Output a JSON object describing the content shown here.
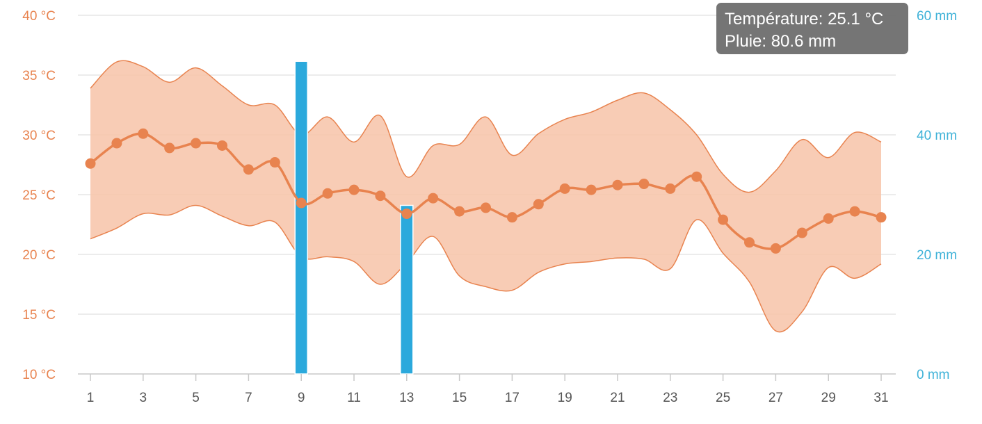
{
  "chart_data": {
    "type": "line",
    "x": [
      1,
      2,
      3,
      4,
      5,
      6,
      7,
      8,
      9,
      10,
      11,
      12,
      13,
      14,
      15,
      16,
      17,
      18,
      19,
      20,
      21,
      22,
      23,
      24,
      25,
      26,
      27,
      28,
      29,
      30,
      31
    ],
    "x_ticks": [
      "1",
      "3",
      "5",
      "7",
      "9",
      "11",
      "13",
      "15",
      "17",
      "19",
      "21",
      "23",
      "25",
      "27",
      "29",
      "31"
    ],
    "y_left": {
      "ticks": [
        "10 °C",
        "15 °C",
        "20 °C",
        "25 °C",
        "30 °C",
        "35 °C",
        "40 °C"
      ],
      "ylim": [
        10,
        40
      ]
    },
    "y_right": {
      "ticks": [
        "0 mm",
        "20 mm",
        "40 mm",
        "60 mm"
      ],
      "ylim": [
        0,
        60
      ]
    },
    "series": [
      {
        "kind": "line",
        "color": "#e8834f",
        "values": [
          27.6,
          29.3,
          30.1,
          28.9,
          29.3,
          29.1,
          27.1,
          27.7,
          24.3,
          25.1,
          25.4,
          24.9,
          23.4,
          24.7,
          23.6,
          23.9,
          23.1,
          24.2,
          25.5,
          25.4,
          25.8,
          25.9,
          25.5,
          26.5,
          22.9,
          21.0,
          20.5,
          21.8,
          23.0,
          23.6,
          23.1
        ]
      },
      {
        "kind": "range",
        "color": "#f7c3a8",
        "high": [
          33.9,
          36.1,
          35.7,
          34.4,
          35.6,
          34.1,
          32.5,
          32.5,
          30.0,
          31.5,
          29.4,
          31.6,
          26.5,
          29.1,
          29.2,
          31.5,
          28.3,
          30.1,
          31.3,
          31.9,
          32.9,
          33.5,
          32.1,
          30.0,
          26.7,
          25.2,
          27.0,
          29.6,
          28.1,
          30.2,
          29.4
        ],
        "low": [
          21.3,
          22.2,
          23.4,
          23.3,
          24.1,
          23.2,
          22.4,
          22.7,
          19.8,
          19.8,
          19.4,
          17.5,
          19.3,
          21.5,
          18.2,
          17.3,
          17.0,
          18.5,
          19.2,
          19.4,
          19.7,
          19.6,
          18.8,
          22.9,
          20.1,
          17.7,
          13.6,
          15.2,
          18.9,
          18.0,
          19.2
        ]
      },
      {
        "kind": "bar",
        "axis": "right",
        "color": "#2ba9dc",
        "bars": [
          {
            "x": 9,
            "value": 52.3
          },
          {
            "x": 13,
            "value": 28.2
          }
        ]
      }
    ],
    "grid": true,
    "legend": "none",
    "tooltip": {
      "line1": "Température: 25.1 °C",
      "line2": "Pluie: 80.6 mm"
    }
  }
}
